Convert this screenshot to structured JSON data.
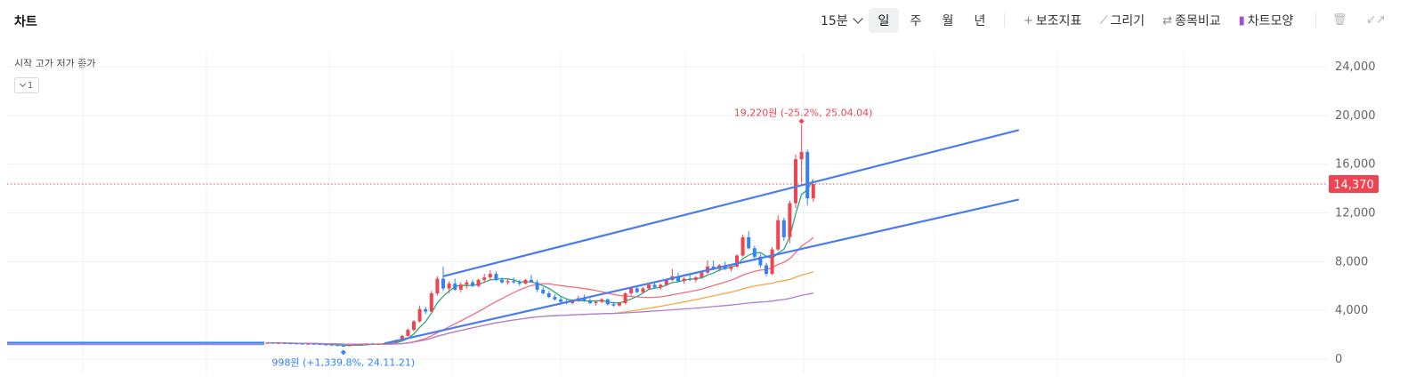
{
  "header": {
    "title": "차트",
    "interval_label": "15분",
    "periods": [
      "일",
      "주",
      "월",
      "년"
    ],
    "active_period": "일",
    "tools": [
      {
        "icon": "plus-icon",
        "glyph": "+",
        "label": "보조지표"
      },
      {
        "icon": "pencil-icon",
        "glyph": "⟋",
        "label": "그리기"
      },
      {
        "icon": "swap-arrows-icon",
        "glyph": "⇄",
        "label": "종목비교"
      },
      {
        "icon": "chart-style-icon",
        "glyph": "▮",
        "label": "차트모양"
      }
    ],
    "trash_icon": "trash-icon",
    "collapse_icon": "collapse-arrows-icon"
  },
  "legend": {
    "text": "시작 고가 저가 종가",
    "collapse_label": "1"
  },
  "chart_data": {
    "type": "candlestick",
    "x_range": [
      "24.10",
      "25.04"
    ],
    "ylim": [
      0,
      24000
    ],
    "y_ticks": [
      "0",
      "4,000",
      "8,000",
      "12,000",
      "16,000",
      "20,000",
      "24,000"
    ],
    "grid": true,
    "colors": {
      "up": "#f04452",
      "down": "#3182f6",
      "trend": "#4a7cf0",
      "price_line": "#f04452",
      "high_label": "#f04452",
      "low_label": "#3182f6"
    },
    "current_price": 14370,
    "current_price_label": "14,370",
    "high_marker": {
      "value": 19220,
      "label": "19,220원 (-25.2%, 25.04.04)"
    },
    "low_marker": {
      "value": 998,
      "label": "998원 (+1,339.8%, 24.11.21)"
    },
    "candles": [
      [
        1300,
        1380,
        1280,
        1340
      ],
      [
        1340,
        1380,
        1300,
        1310
      ],
      [
        1310,
        1350,
        1280,
        1320
      ],
      [
        1320,
        1360,
        1290,
        1300
      ],
      [
        1300,
        1340,
        1270,
        1290
      ],
      [
        1290,
        1330,
        1260,
        1270
      ],
      [
        1270,
        1300,
        1230,
        1250
      ],
      [
        1250,
        1290,
        1220,
        1260
      ],
      [
        1260,
        1300,
        1230,
        1240
      ],
      [
        1240,
        1270,
        1180,
        1200
      ],
      [
        1200,
        1240,
        1150,
        1180
      ],
      [
        1180,
        1220,
        1120,
        1140
      ],
      [
        1140,
        1180,
        1080,
        1100
      ],
      [
        1100,
        1140,
        998,
        1080
      ],
      [
        1080,
        1160,
        1050,
        1140
      ],
      [
        1140,
        1200,
        1100,
        1180
      ],
      [
        1180,
        1240,
        1140,
        1220
      ],
      [
        1220,
        1300,
        1200,
        1280
      ],
      [
        1280,
        1320,
        1220,
        1240
      ],
      [
        1240,
        1300,
        1200,
        1260
      ],
      [
        1260,
        1320,
        1240,
        1300
      ],
      [
        1300,
        1380,
        1280,
        1350
      ],
      [
        1350,
        1600,
        1320,
        1560
      ],
      [
        1560,
        2000,
        1500,
        1900
      ],
      [
        1900,
        2500,
        1850,
        2400
      ],
      [
        2400,
        3200,
        2300,
        3100
      ],
      [
        3100,
        4400,
        3000,
        4100
      ],
      [
        4100,
        4300,
        3700,
        3900
      ],
      [
        3900,
        5600,
        3850,
        5400
      ],
      [
        5400,
        6800,
        5200,
        6600
      ],
      [
        6600,
        7600,
        5600,
        5800
      ],
      [
        5800,
        6400,
        5400,
        6200
      ],
      [
        6200,
        6600,
        5600,
        5700
      ],
      [
        5700,
        6300,
        5500,
        6100
      ],
      [
        6100,
        6500,
        5800,
        6300
      ],
      [
        6300,
        6500,
        5900,
        6000
      ],
      [
        6000,
        6600,
        5900,
        6500
      ],
      [
        6500,
        7000,
        6300,
        6700
      ],
      [
        6700,
        7300,
        6500,
        7000
      ],
      [
        7000,
        7200,
        6400,
        6500
      ],
      [
        6500,
        6700,
        6200,
        6300
      ],
      [
        6300,
        6600,
        6100,
        6400
      ],
      [
        6400,
        6700,
        6200,
        6300
      ],
      [
        6300,
        6500,
        6000,
        6200
      ],
      [
        6200,
        6600,
        6100,
        6500
      ],
      [
        6500,
        6900,
        6300,
        6300
      ],
      [
        6300,
        6500,
        5500,
        5700
      ],
      [
        5700,
        5900,
        5300,
        5400
      ],
      [
        5400,
        5600,
        5000,
        5100
      ],
      [
        5100,
        5300,
        4800,
        4900
      ],
      [
        4900,
        5100,
        4600,
        4700
      ],
      [
        4700,
        4900,
        4500,
        4600
      ],
      [
        4600,
        4900,
        4500,
        4800
      ],
      [
        4800,
        5200,
        4700,
        5000
      ],
      [
        5000,
        5300,
        4700,
        4800
      ],
      [
        4800,
        5000,
        4500,
        4600
      ],
      [
        4600,
        4800,
        4400,
        4700
      ],
      [
        4700,
        5000,
        4600,
        4900
      ],
      [
        4900,
        5000,
        4400,
        4500
      ],
      [
        4500,
        4700,
        4300,
        4400
      ],
      [
        4400,
        4700,
        4300,
        4600
      ],
      [
        4600,
        5500,
        4500,
        5400
      ],
      [
        5400,
        5900,
        5200,
        5800
      ],
      [
        5800,
        6000,
        5400,
        5500
      ],
      [
        5500,
        5900,
        5400,
        5800
      ],
      [
        5800,
        6200,
        5700,
        6100
      ],
      [
        6100,
        6300,
        5800,
        5900
      ],
      [
        5900,
        6200,
        5700,
        6100
      ],
      [
        6100,
        6600,
        6000,
        6500
      ],
      [
        6500,
        7400,
        6400,
        6800
      ],
      [
        6800,
        7100,
        6300,
        6400
      ],
      [
        6400,
        6700,
        6200,
        6600
      ],
      [
        6600,
        6900,
        6400,
        6500
      ],
      [
        6500,
        6800,
        6300,
        6700
      ],
      [
        6700,
        7200,
        6600,
        7100
      ],
      [
        7100,
        8100,
        7000,
        7600
      ],
      [
        7600,
        8100,
        7300,
        7400
      ],
      [
        7400,
        7800,
        7200,
        7700
      ],
      [
        7700,
        8000,
        7300,
        7400
      ],
      [
        7400,
        7800,
        7200,
        7600
      ],
      [
        7600,
        8600,
        7500,
        8500
      ],
      [
        8500,
        10200,
        8400,
        10000
      ],
      [
        10000,
        10500,
        9000,
        9100
      ],
      [
        9100,
        9300,
        8200,
        8400
      ],
      [
        8400,
        8600,
        7500,
        7700
      ],
      [
        7700,
        7900,
        6800,
        7000
      ],
      [
        7000,
        9200,
        6900,
        9000
      ],
      [
        9000,
        11800,
        8900,
        11400
      ],
      [
        11400,
        11600,
        9700,
        10000
      ],
      [
        10000,
        13000,
        9500,
        12800
      ],
      [
        12800,
        16800,
        12400,
        16400
      ],
      [
        16400,
        19220,
        14500,
        17000
      ],
      [
        17000,
        17200,
        12600,
        13200
      ],
      [
        13200,
        14400,
        12900,
        14370
      ]
    ],
    "trend_channel": [
      {
        "from": {
          "index": 30,
          "value": 6800
        },
        "to": {
          "index": 128,
          "value": 18800
        }
      },
      {
        "from": {
          "index": 20,
          "value": 1280
        },
        "to": {
          "index": 128,
          "value": 13100
        }
      }
    ]
  }
}
